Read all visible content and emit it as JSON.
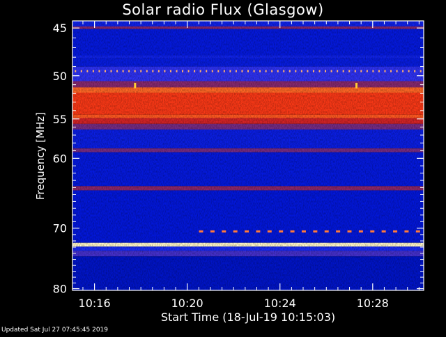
{
  "chart_data": {
    "type": "heatmap",
    "title": "Solar radio Flux (Glasgow)",
    "xlabel": "Start Time (18-Jul-19 10:15:03)",
    "ylabel": "Frequency [MHz]",
    "x_tick_labels": [
      "10:16",
      "10:20",
      "10:24",
      "10:28"
    ],
    "x_tick_minutes": [
      16,
      20,
      24,
      28
    ],
    "x_range_minutes": [
      15.05,
      30.2
    ],
    "y_tick_labels": [
      "45",
      "50",
      "55",
      "60",
      "70",
      "80"
    ],
    "y_tick_values": [
      45,
      50,
      55,
      60,
      70,
      80
    ],
    "y_range_mhz": [
      44.3,
      80.3
    ],
    "y_scale": "log",
    "colormap": [
      "#000b6b",
      "#0016d8",
      "#2533ff",
      "#7a2a7a",
      "#c81d2a",
      "#ff3b14",
      "#ff9a3a",
      "#fff6c8"
    ],
    "bands": [
      {
        "f0": 44.3,
        "f1": 44.85,
        "level": 0.2
      },
      {
        "f0": 44.85,
        "f1": 45.1,
        "level": 0.45
      },
      {
        "f0": 45.1,
        "f1": 47.8,
        "level": 0.16
      },
      {
        "f0": 47.8,
        "f1": 48.1,
        "level": 0.2
      },
      {
        "f0": 48.1,
        "f1": 49.0,
        "level": 0.17
      },
      {
        "f0": 49.0,
        "f1": 50.6,
        "level": 0.3
      },
      {
        "f0": 50.6,
        "f1": 51.3,
        "level": 0.45
      },
      {
        "f0": 51.3,
        "f1": 51.9,
        "level": 0.78
      },
      {
        "f0": 51.9,
        "f1": 54.5,
        "level": 0.7
      },
      {
        "f0": 54.5,
        "f1": 54.9,
        "level": 0.76
      },
      {
        "f0": 54.9,
        "f1": 55.6,
        "level": 0.6
      },
      {
        "f0": 55.6,
        "f1": 56.3,
        "level": 0.42
      },
      {
        "f0": 56.3,
        "f1": 58.7,
        "level": 0.18
      },
      {
        "f0": 58.7,
        "f1": 59.2,
        "level": 0.42
      },
      {
        "f0": 59.2,
        "f1": 63.8,
        "level": 0.16
      },
      {
        "f0": 63.8,
        "f1": 64.4,
        "level": 0.46
      },
      {
        "f0": 64.4,
        "f1": 72.3,
        "level": 0.15
      },
      {
        "f0": 72.3,
        "f1": 72.9,
        "level": 1.0
      },
      {
        "f0": 72.9,
        "f1": 73.6,
        "level": 0.24
      },
      {
        "f0": 73.6,
        "f1": 74.5,
        "level": 0.34
      },
      {
        "f0": 74.5,
        "f1": 80.3,
        "level": 0.12
      }
    ],
    "interference_lines": [
      {
        "freq": 49.5,
        "from_min": 15.05,
        "to_min": 30.2,
        "dash_count": 59
      },
      {
        "freq": 70.5,
        "from_min": 20.35,
        "to_min": 30.2,
        "dash_count": 20
      }
    ],
    "spikes": [
      {
        "time_min": 17.75,
        "freq": 51.1
      },
      {
        "time_min": 27.3,
        "freq": 51.1
      }
    ]
  },
  "footer": {
    "updated": "Updated Sat Jul 27 07:45:45 2019"
  }
}
